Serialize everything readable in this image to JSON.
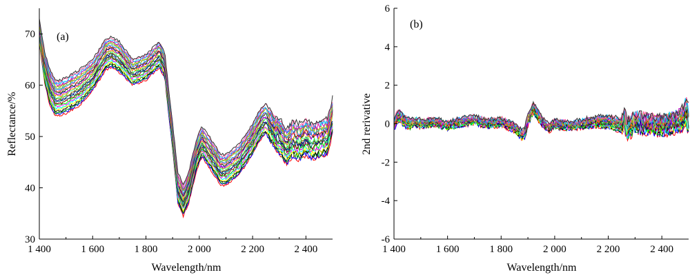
{
  "chart_data": [
    {
      "type": "line",
      "panel_label": "(a)",
      "xlabel": "Wavelength/nm",
      "ylabel": "Reflectance/%",
      "xlim": [
        1400,
        2500
      ],
      "ylim": [
        30,
        75
      ],
      "xticks": [
        1400,
        1600,
        1800,
        2000,
        2200,
        2400
      ],
      "xtick_labels": [
        "1 400",
        "1 600",
        "1 800",
        "2 000",
        "2 200",
        "2 400"
      ],
      "yticks": [
        30,
        40,
        50,
        60,
        70
      ],
      "ytick_labels": [
        "30",
        "40",
        "50",
        "60",
        "70"
      ],
      "grid": false,
      "legend": "none",
      "series_count": 24,
      "x": [
        1400,
        1420,
        1440,
        1460,
        1480,
        1500,
        1550,
        1600,
        1650,
        1670,
        1700,
        1750,
        1800,
        1850,
        1870,
        1900,
        1920,
        1940,
        1960,
        1990,
        2010,
        2050,
        2080,
        2100,
        2150,
        2200,
        2230,
        2250,
        2280,
        2300,
        2330,
        2350,
        2380,
        2400,
        2420,
        2450,
        2480,
        2500
      ],
      "mean_values": [
        70.5,
        63.5,
        59.5,
        57.5,
        57.5,
        58.0,
        59.5,
        62.0,
        66.0,
        66.5,
        65.5,
        62.5,
        63.5,
        66.0,
        64.0,
        50.0,
        40.0,
        37.5,
        40.0,
        46.5,
        49.0,
        46.0,
        43.5,
        43.5,
        45.5,
        49.5,
        52.5,
        53.5,
        51.0,
        50.0,
        48.0,
        49.5,
        49.0,
        50.0,
        49.0,
        49.5,
        50.0,
        54.0
      ],
      "spread": [
        2.5,
        3.0,
        3.5,
        3.5,
        3.5,
        3.5,
        3.5,
        3.0,
        3.0,
        3.0,
        3.0,
        2.5,
        2.5,
        2.5,
        2.5,
        2.5,
        3.0,
        3.0,
        3.0,
        3.0,
        3.0,
        3.0,
        3.0,
        3.0,
        3.0,
        3.0,
        3.0,
        3.0,
        3.0,
        3.5,
        3.5,
        3.5,
        3.5,
        3.5,
        3.5,
        3.5,
        3.5,
        3.5
      ],
      "series_colors": [
        "#ff0000",
        "#0000ff",
        "#00a000",
        "#000000",
        "#ffff00",
        "#00ffff",
        "#ff00ff",
        "#00ff00",
        "#800000",
        "#008080",
        "#000080",
        "#808000",
        "#40ff80",
        "#ff8000",
        "#8000ff",
        "#004000",
        "#ff4040",
        "#2080ff",
        "#60c060",
        "#b0b000",
        "#c000c0",
        "#00c0ff",
        "#ff60a0",
        "#303030"
      ]
    },
    {
      "type": "line",
      "panel_label": "(b)",
      "xlabel": "Wavelength/nm",
      "ylabel": "2nd rerivative",
      "xlim": [
        1400,
        2500
      ],
      "ylim": [
        -6,
        6
      ],
      "xticks": [
        1400,
        1600,
        1800,
        2000,
        2200,
        2400
      ],
      "xtick_labels": [
        "1 400",
        "1 600",
        "1 800",
        "2 000",
        "2 200",
        "2 400"
      ],
      "yticks": [
        -6,
        -4,
        -2,
        0,
        2,
        4,
        6
      ],
      "ytick_labels": [
        "-6",
        "-4",
        "-2",
        "0",
        "2",
        "4",
        "6"
      ],
      "grid": false,
      "legend": "none",
      "series_count": 24,
      "x": [
        1400,
        1410,
        1420,
        1440,
        1460,
        1480,
        1500,
        1550,
        1600,
        1650,
        1700,
        1750,
        1800,
        1850,
        1880,
        1890,
        1900,
        1920,
        1940,
        1960,
        1980,
        2000,
        2050,
        2100,
        2150,
        2200,
        2250,
        2260,
        2270,
        2300,
        2350,
        2400,
        2450,
        2480,
        2490,
        2500
      ],
      "mean_values": [
        -0.1,
        0.3,
        0.4,
        0.1,
        0.0,
        0.1,
        0.0,
        0.1,
        -0.1,
        0.1,
        0.2,
        0.0,
        0.1,
        -0.2,
        -0.6,
        -0.4,
        0.2,
        0.8,
        0.4,
        0.0,
        -0.2,
        0.0,
        -0.1,
        0.0,
        0.1,
        0.1,
        -0.1,
        0.3,
        -0.3,
        0.1,
        0.0,
        -0.1,
        0.1,
        0.3,
        0.7,
        0.2
      ],
      "spread": [
        0.25,
        0.3,
        0.3,
        0.25,
        0.25,
        0.2,
        0.2,
        0.2,
        0.2,
        0.2,
        0.2,
        0.2,
        0.2,
        0.2,
        0.25,
        0.3,
        0.3,
        0.25,
        0.25,
        0.2,
        0.2,
        0.2,
        0.2,
        0.2,
        0.25,
        0.3,
        0.35,
        0.45,
        0.45,
        0.4,
        0.4,
        0.4,
        0.45,
        0.5,
        0.6,
        0.7
      ],
      "series_colors": [
        "#ff0000",
        "#0000ff",
        "#00a000",
        "#000000",
        "#ffff00",
        "#00ffff",
        "#ff00ff",
        "#00ff00",
        "#800000",
        "#008080",
        "#000080",
        "#808000",
        "#40ff80",
        "#ff8000",
        "#8000ff",
        "#004000",
        "#ff4040",
        "#2080ff",
        "#60c060",
        "#b0b000",
        "#c000c0",
        "#00c0ff",
        "#ff60a0",
        "#303030"
      ]
    }
  ]
}
